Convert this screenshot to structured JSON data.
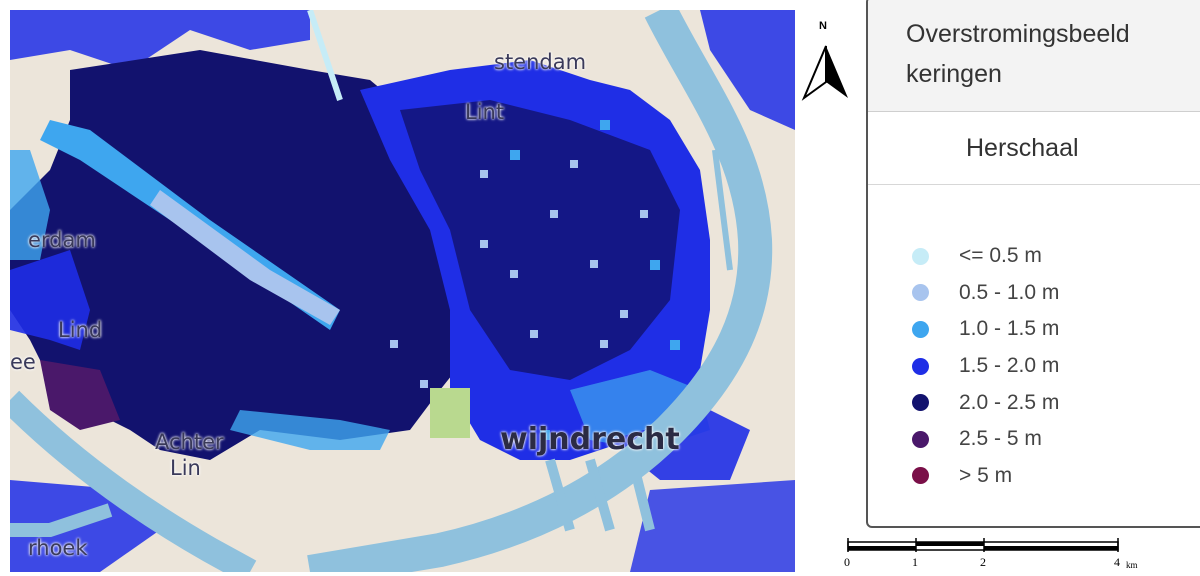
{
  "map": {
    "places": [
      {
        "id": "stendam",
        "text": "stendam"
      },
      {
        "id": "lint",
        "text": "Lint"
      },
      {
        "id": "ferdam",
        "text": "erdam"
      },
      {
        "id": "lindend",
        "text": "Lind"
      },
      {
        "id": "ee",
        "text": "ee"
      },
      {
        "id": "achter",
        "text": "Achter"
      },
      {
        "id": "lin",
        "text": "Lin"
      },
      {
        "id": "zwijndrecht",
        "text": "wijndrecht"
      },
      {
        "id": "rhoek",
        "text": "rhoek"
      }
    ],
    "colors": {
      "land": "#ece5da",
      "water": "#8fc1dd",
      "park": "#b9d98f",
      "d1": "#c6ecf7",
      "d2": "#a8c4ee",
      "d3": "#3ea6ef",
      "d4": "#1f2ee6",
      "d5": "#12126e",
      "d6": "#4a186a",
      "d7": "#7a0f48"
    }
  },
  "north_arrow": {
    "label": "N"
  },
  "legend": {
    "title_line1": "Overstromingsbeeld",
    "title_line2": "keringen",
    "rescale_label": "Herschaal",
    "items": [
      {
        "label": "<= 0.5 m",
        "color": "#c6ecf7"
      },
      {
        "label": "0.5 - 1.0 m",
        "color": "#a8c4ee"
      },
      {
        "label": "1.0 - 1.5 m",
        "color": "#3ea6ef"
      },
      {
        "label": "1.5 - 2.0 m",
        "color": "#1f2ee6"
      },
      {
        "label": "2.0 - 2.5 m",
        "color": "#12126e"
      },
      {
        "label": "2.5 - 5 m",
        "color": "#4a186a"
      },
      {
        "label": "> 5 m",
        "color": "#7a0f48"
      }
    ]
  },
  "scale_bar": {
    "labels": [
      "0",
      "1",
      "2",
      "4"
    ],
    "unit": "km"
  }
}
